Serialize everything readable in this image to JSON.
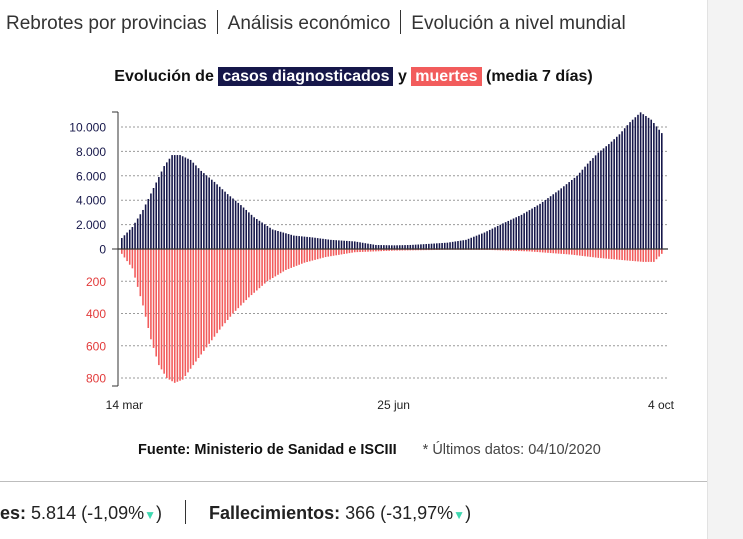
{
  "tabs": [
    "Rebrotes por provincias",
    "Análisis económico",
    "Evolución a nivel mundial"
  ],
  "title": {
    "prefix": "Evolución de",
    "cases": "casos diagnosticados",
    "mid": "y",
    "deaths": "muertes",
    "suffix": "(media 7 días)"
  },
  "source": {
    "label": "Fuente: Ministerio de Sanidad e ISCIII",
    "updated": "* Últimos datos: 04/10/2020"
  },
  "stats": {
    "cases_label": "es:",
    "cases_value": "5.814 (-1,09%",
    "cases_close": ")",
    "deaths_label": "Fallecimientos:",
    "deaths_value": "366 (-31,97%",
    "deaths_close": ")",
    "trend_glyph": "▼"
  },
  "colors": {
    "cases": "#16174a",
    "deaths": "#f25c5c",
    "trend": "#3ed8b0"
  },
  "chart_data": {
    "type": "bar",
    "start_date": "2020-03-14",
    "end_date": "2020-10-04",
    "x_tick_labels": [
      "14 mar",
      "25 jun",
      "4 oct"
    ],
    "x_tick_dates": [
      "2020-03-14",
      "2020-06-25",
      "2020-10-04"
    ],
    "y_ticks_cases": [
      "0",
      "2.000",
      "4.000",
      "6.000",
      "8.000",
      "10.000"
    ],
    "y_ticks_deaths": [
      "200",
      "400",
      "600",
      "800"
    ],
    "cases_ylim": [
      0,
      10000
    ],
    "deaths_ylim": [
      0,
      800
    ],
    "grid": true,
    "series": [
      {
        "name": "casos diagnosticados",
        "direction": "up",
        "dates": [
          "2020-03-14",
          "2020-03-18",
          "2020-03-22",
          "2020-03-26",
          "2020-03-30",
          "2020-04-02",
          "2020-04-05",
          "2020-04-09",
          "2020-04-13",
          "2020-04-18",
          "2020-04-23",
          "2020-04-28",
          "2020-05-03",
          "2020-05-10",
          "2020-05-18",
          "2020-05-25",
          "2020-06-01",
          "2020-06-10",
          "2020-06-18",
          "2020-06-25",
          "2020-07-01",
          "2020-07-08",
          "2020-07-15",
          "2020-07-22",
          "2020-07-29",
          "2020-08-05",
          "2020-08-12",
          "2020-08-19",
          "2020-08-26",
          "2020-09-02",
          "2020-09-06",
          "2020-09-10",
          "2020-09-14",
          "2020-09-18",
          "2020-09-22",
          "2020-09-26",
          "2020-09-30",
          "2020-10-04"
        ],
        "values": [
          900,
          1800,
          3200,
          5000,
          6800,
          7700,
          7700,
          7300,
          6400,
          5500,
          4500,
          3600,
          2600,
          1600,
          1100,
          950,
          750,
          620,
          330,
          300,
          330,
          420,
          520,
          750,
          1350,
          2100,
          2800,
          3700,
          4800,
          6000,
          7000,
          7900,
          8600,
          9400,
          10400,
          11200,
          10600,
          9500
        ]
      },
      {
        "name": "muertes",
        "direction": "down",
        "dates": [
          "2020-03-14",
          "2020-03-18",
          "2020-03-22",
          "2020-03-25",
          "2020-03-28",
          "2020-03-31",
          "2020-04-03",
          "2020-04-06",
          "2020-04-10",
          "2020-04-15",
          "2020-04-20",
          "2020-04-25",
          "2020-05-01",
          "2020-05-08",
          "2020-05-15",
          "2020-05-22",
          "2020-05-30",
          "2020-06-10",
          "2020-06-25",
          "2020-07-15",
          "2020-07-31",
          "2020-08-15",
          "2020-08-31",
          "2020-09-10",
          "2020-09-20",
          "2020-09-27",
          "2020-10-01",
          "2020-10-04"
        ],
        "values": [
          30,
          120,
          350,
          560,
          720,
          800,
          830,
          810,
          720,
          610,
          500,
          400,
          300,
          200,
          130,
          85,
          50,
          20,
          10,
          5,
          6,
          15,
          35,
          55,
          70,
          80,
          80,
          30
        ]
      }
    ]
  }
}
